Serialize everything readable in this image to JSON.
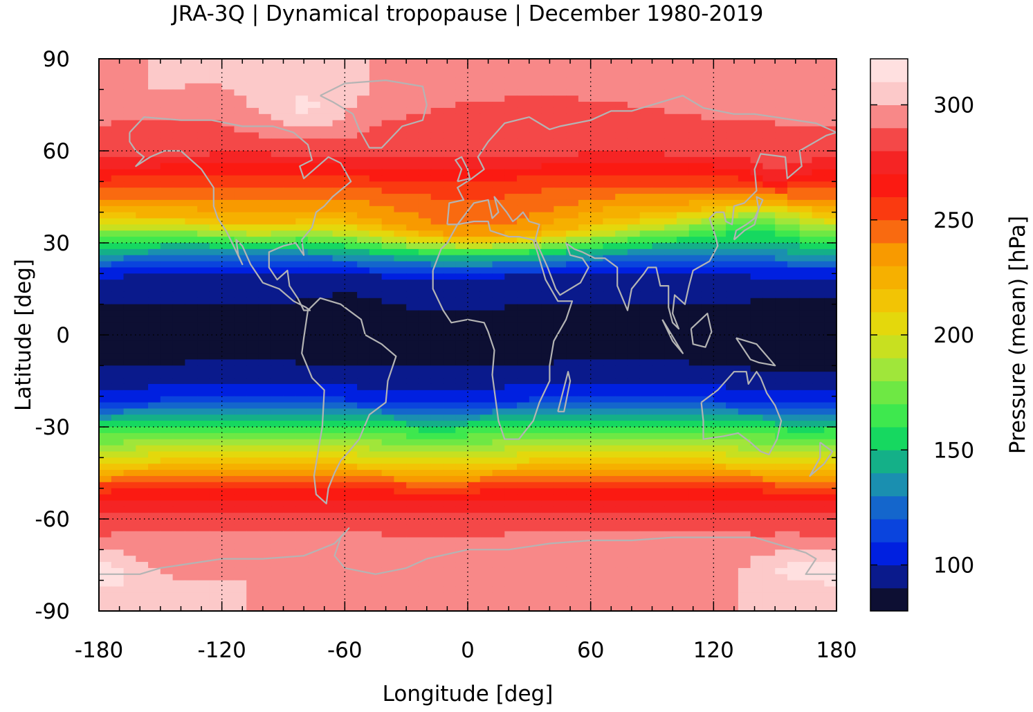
{
  "chart_data": {
    "type": "heatmap",
    "title": "JRA-3Q | Dynamical tropopause | December 1980-2019",
    "xlabel": "Longitude [deg]",
    "ylabel": "Latitude [deg]",
    "xlim": [
      -180,
      180
    ],
    "ylim": [
      -90,
      90
    ],
    "x_ticks": [
      -180,
      -120,
      -60,
      0,
      60,
      120,
      180
    ],
    "x_tick_labels": [
      "-180",
      "-120",
      "-60",
      "0",
      "60",
      "120",
      "180"
    ],
    "y_ticks": [
      90,
      60,
      30,
      0,
      -30,
      -60,
      -90
    ],
    "y_tick_labels": [
      "90",
      "60",
      "30",
      "0",
      "-30",
      "-60",
      "-90"
    ],
    "grid": true,
    "coastlines": true,
    "colorbar": {
      "label": "Pressure (mean) [hPa]",
      "range": [
        80,
        320
      ],
      "step": 10,
      "ticks": [
        100,
        150,
        200,
        250,
        300
      ],
      "tick_labels": [
        "100",
        "150",
        "200",
        "250",
        "300"
      ],
      "colors": [
        "#0d0f33",
        "#0a1a8c",
        "#0020e0",
        "#0a44dd",
        "#1466cc",
        "#1a8fb0",
        "#14b088",
        "#16d860",
        "#3ee84e",
        "#6ee844",
        "#a0e63a",
        "#c8e020",
        "#e4d80c",
        "#f2c405",
        "#f6b000",
        "#f89a00",
        "#f96a10",
        "#fa3a10",
        "#fb1a12",
        "#f52424",
        "#f44848",
        "#f88888",
        "#fcc9c9",
        "#ffe0e0"
      ]
    },
    "zonal_mean_profile": {
      "latitude": [
        -90,
        -80,
        -70,
        -60,
        -50,
        -40,
        -30,
        -20,
        -10,
        0,
        10,
        20,
        30,
        40,
        50,
        60,
        70,
        80,
        90
      ],
      "pressure_hPa": [
        300,
        300,
        296,
        285,
        260,
        205,
        160,
        105,
        90,
        88,
        90,
        100,
        155,
        225,
        255,
        285,
        290,
        300,
        300
      ]
    }
  }
}
